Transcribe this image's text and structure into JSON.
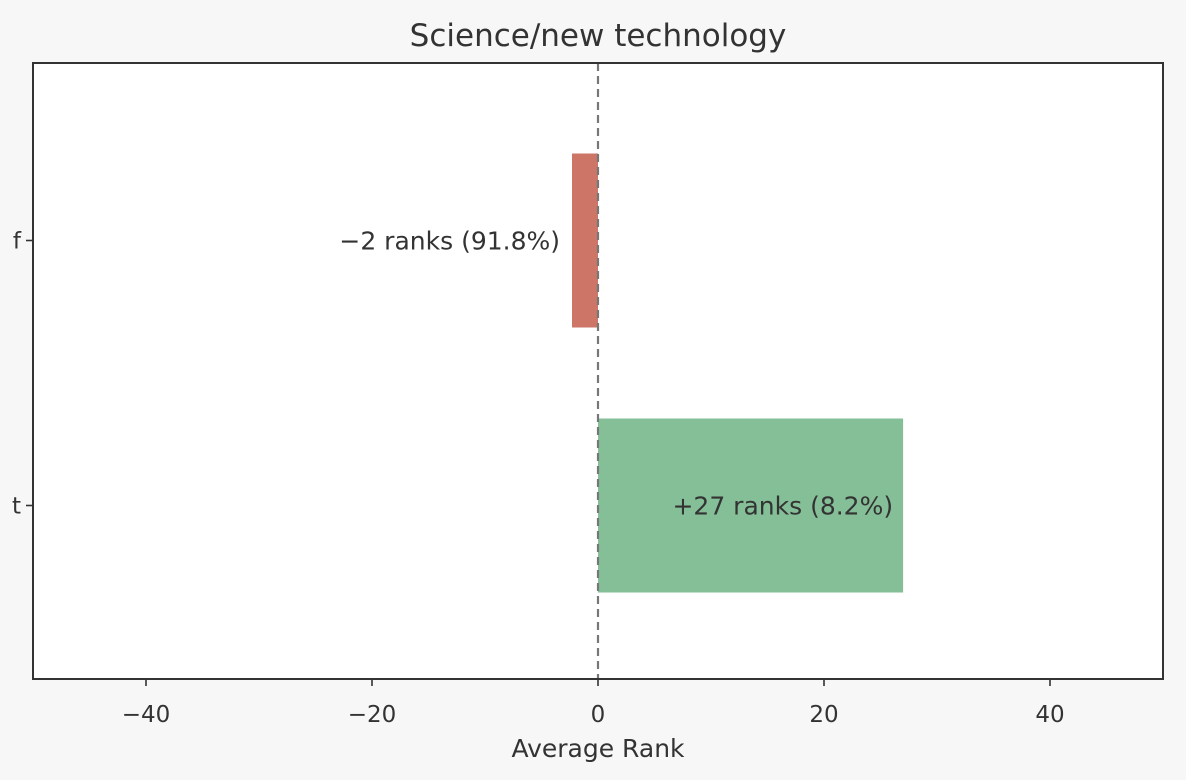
{
  "chart_data": {
    "type": "bar",
    "orientation": "horizontal",
    "title": "Science/new technology",
    "xlabel": "Average Rank",
    "ylabel": "",
    "xlim": [
      -50,
      50
    ],
    "xticks": [
      -40,
      -20,
      0,
      20,
      40
    ],
    "xtick_labels": [
      "−40",
      "−20",
      "0",
      "20",
      "40"
    ],
    "categories": [
      "f",
      "t"
    ],
    "values": [
      -2.3,
      27
    ],
    "bar_labels": [
      "−2 ranks (91.8%)",
      "+27 ranks (8.2%)"
    ],
    "colors": [
      "#cd7566",
      "#84bf98"
    ],
    "reference_line": {
      "x": 0,
      "style": "dashed",
      "color": "#777777"
    },
    "grid": false,
    "legend": "none"
  }
}
